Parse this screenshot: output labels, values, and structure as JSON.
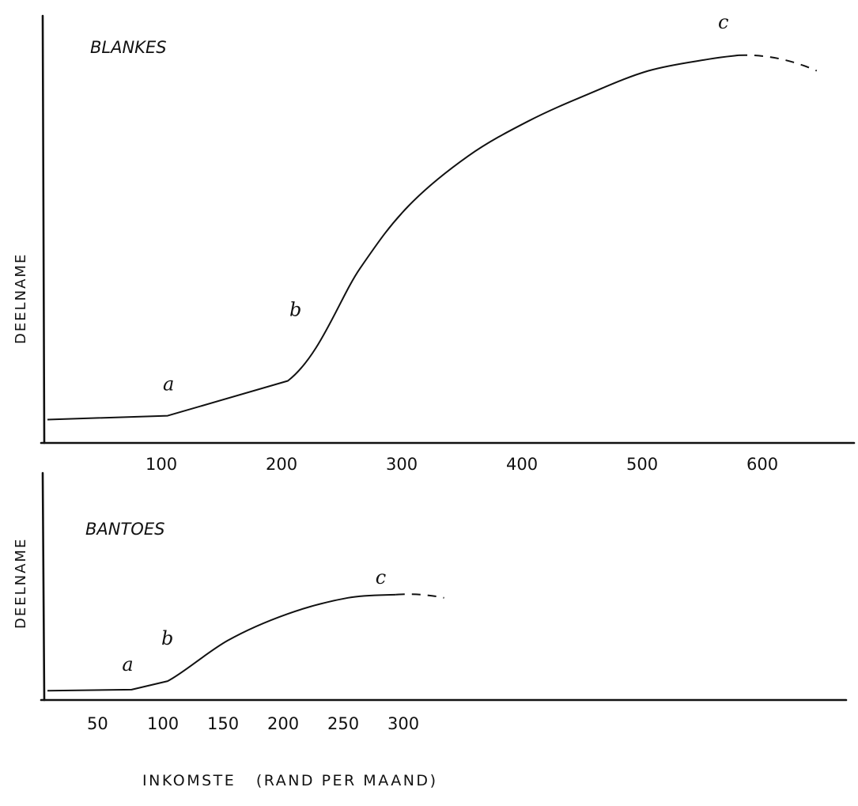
{
  "chart_data": [
    {
      "type": "line",
      "title": "BLANKES",
      "ylabel": "DEELNAME",
      "xlabel": "",
      "x_ticks": [
        "100",
        "200",
        "300",
        "400",
        "500",
        "600"
      ],
      "xlim": [
        0,
        680
      ],
      "ylim": [
        0,
        100
      ],
      "grid": false,
      "series": [
        {
          "x": [
            0,
            100,
            200,
            260,
            300,
            350,
            400,
            450,
            500,
            550,
            575
          ],
          "y": [
            5,
            6,
            15,
            44,
            60,
            73,
            82,
            89,
            95,
            98,
            99
          ]
        }
      ],
      "extrapolated": {
        "x": [
          575,
          640
        ],
        "y": [
          99,
          95
        ]
      },
      "annotations": [
        {
          "text": "a",
          "x": 100,
          "y": 6
        },
        {
          "text": "b",
          "x": 200,
          "y": 15
        },
        {
          "text": "c",
          "x": 575,
          "y": 99
        }
      ]
    },
    {
      "type": "line",
      "title": "BANTOES",
      "ylabel": "DEELNAME",
      "xlabel": "INKOMSTE   (RAND PER MAAND)",
      "x_ticks": [
        "50",
        "100",
        "150",
        "200",
        "250",
        "300"
      ],
      "xlim": [
        0,
        680
      ],
      "ylim": [
        0,
        100
      ],
      "grid": false,
      "series": [
        {
          "x": [
            0,
            70,
            100,
            150,
            200,
            250,
            290
          ],
          "y": [
            5,
            6,
            14,
            52,
            77,
            92,
            95
          ]
        }
      ],
      "extrapolated": {
        "x": [
          290,
          330
        ],
        "y": [
          95,
          92
        ]
      },
      "annotations": [
        {
          "text": "a",
          "x": 70,
          "y": 6
        },
        {
          "text": "b",
          "x": 100,
          "y": 14
        },
        {
          "text": "c",
          "x": 290,
          "y": 95
        }
      ]
    }
  ]
}
